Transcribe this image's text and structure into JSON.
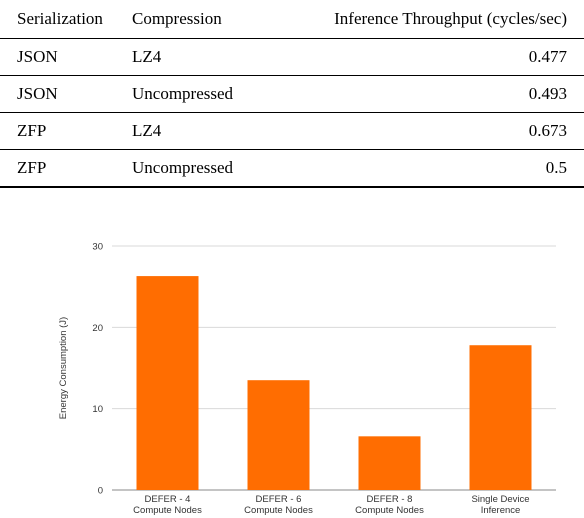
{
  "table": {
    "headers": [
      "Serialization",
      "Compression",
      "Inference Throughput (cycles/sec)"
    ],
    "rows": [
      [
        "JSON",
        "LZ4",
        "0.477"
      ],
      [
        "JSON",
        "Uncompressed",
        "0.493"
      ],
      [
        "ZFP",
        "LZ4",
        "0.673"
      ],
      [
        "ZFP",
        "Uncompressed",
        "0.5"
      ]
    ]
  },
  "chart_data": {
    "type": "bar",
    "categories": [
      [
        "DEFER - 4",
        "Compute Nodes"
      ],
      [
        "DEFER - 6",
        "Compute Nodes"
      ],
      [
        "DEFER - 8",
        "Compute Nodes"
      ],
      [
        "Single Device",
        "Inference"
      ]
    ],
    "values": [
      26.3,
      13.5,
      6.6,
      17.8
    ],
    "ylabel": "Energy Consumption (J)",
    "yticks": [
      0,
      10,
      20,
      30
    ],
    "ylim": [
      0,
      30
    ],
    "grid": true,
    "bar_color": "#ff6d01"
  }
}
